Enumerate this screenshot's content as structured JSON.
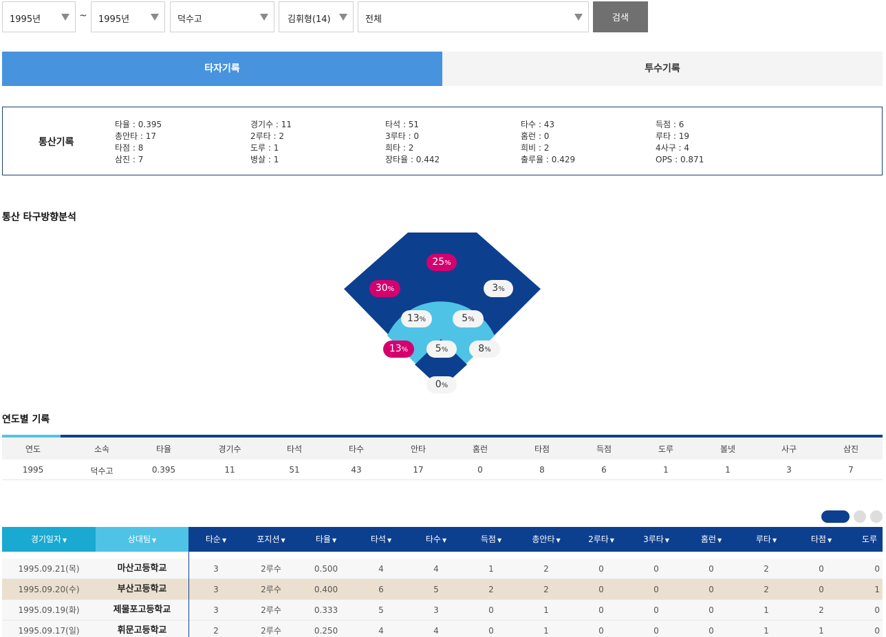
{
  "filters": {
    "year_from": "1995년",
    "tilde": "~",
    "year_to": "1995년",
    "team": "덕수고",
    "player": "김휘형(14)",
    "category": "전체",
    "search_label": "검색"
  },
  "tabs": {
    "batting": "타자기록",
    "pitching": "투수기록"
  },
  "career": {
    "title": "통산기록",
    "columns": [
      [
        "타율 : 0.395",
        "총안타 : 17",
        "타점 : 8",
        "삼진 : 7"
      ],
      [
        "경기수 : 11",
        "2루타 : 2",
        "도루 : 1",
        "병살 : 1"
      ],
      [
        "타석 : 51",
        "3루타 : 0",
        "희타 : 2",
        "장타율 : 0.442"
      ],
      [
        "타수 : 43",
        "홈런 : 0",
        "희비 : 2",
        "출루율 : 0.429"
      ],
      [
        "득점 : 6",
        "루타 : 19",
        "4사구 : 4",
        "OPS : 0.871"
      ]
    ]
  },
  "direction": {
    "title": "통산 타구방향분석",
    "unit": "%",
    "zones": {
      "center": "25",
      "left": "30",
      "right": "3",
      "inner_left": "13",
      "inner_right": "5",
      "third": "13",
      "mound": "5",
      "first": "8",
      "home": "0"
    }
  },
  "yearly": {
    "title": "연도별 기록",
    "headers": [
      "연도",
      "소속",
      "타율",
      "경기수",
      "타석",
      "타수",
      "안타",
      "홈런",
      "타점",
      "득점",
      "도루",
      "볼넷",
      "사구",
      "삼진"
    ],
    "rows": [
      [
        "1995",
        "덕수고",
        "0.395",
        "11",
        "51",
        "43",
        "17",
        "0",
        "8",
        "6",
        "1",
        "1",
        "3",
        "7"
      ]
    ]
  },
  "games": {
    "headers": [
      "경기일자",
      "상대팀",
      "타순",
      "포지션",
      "타율",
      "타석",
      "타수",
      "득점",
      "총안타",
      "2루타",
      "3루타",
      "홈런",
      "루타",
      "타점",
      "도루"
    ],
    "sort_icon": "▼",
    "rows": [
      [
        "1995.09.21(목)",
        "마산고등학교",
        "3",
        "2루수",
        "0.500",
        "4",
        "4",
        "1",
        "2",
        "0",
        "0",
        "0",
        "2",
        "0",
        "0"
      ],
      [
        "1995.09.20(수)",
        "부산고등학교",
        "3",
        "2루수",
        "0.400",
        "6",
        "5",
        "2",
        "2",
        "0",
        "0",
        "0",
        "2",
        "0",
        "1"
      ],
      [
        "1995.09.19(화)",
        "제물포고등학교",
        "3",
        "2루수",
        "0.333",
        "5",
        "3",
        "0",
        "1",
        "0",
        "0",
        "0",
        "1",
        "2",
        "0"
      ],
      [
        "1995.09.17(일)",
        "휘문고등학교",
        "2",
        "2루수",
        "0.250",
        "4",
        "4",
        "0",
        "1",
        "0",
        "0",
        "0",
        "1",
        "1",
        "0"
      ]
    ],
    "highlight_row": 1
  },
  "colors": {
    "tab_active": "#4793de",
    "field_outer": "#0d3f8f",
    "field_inner": "#4fc3e6",
    "hot": "#d4006f",
    "row_highlight": "#ebe0cf"
  }
}
